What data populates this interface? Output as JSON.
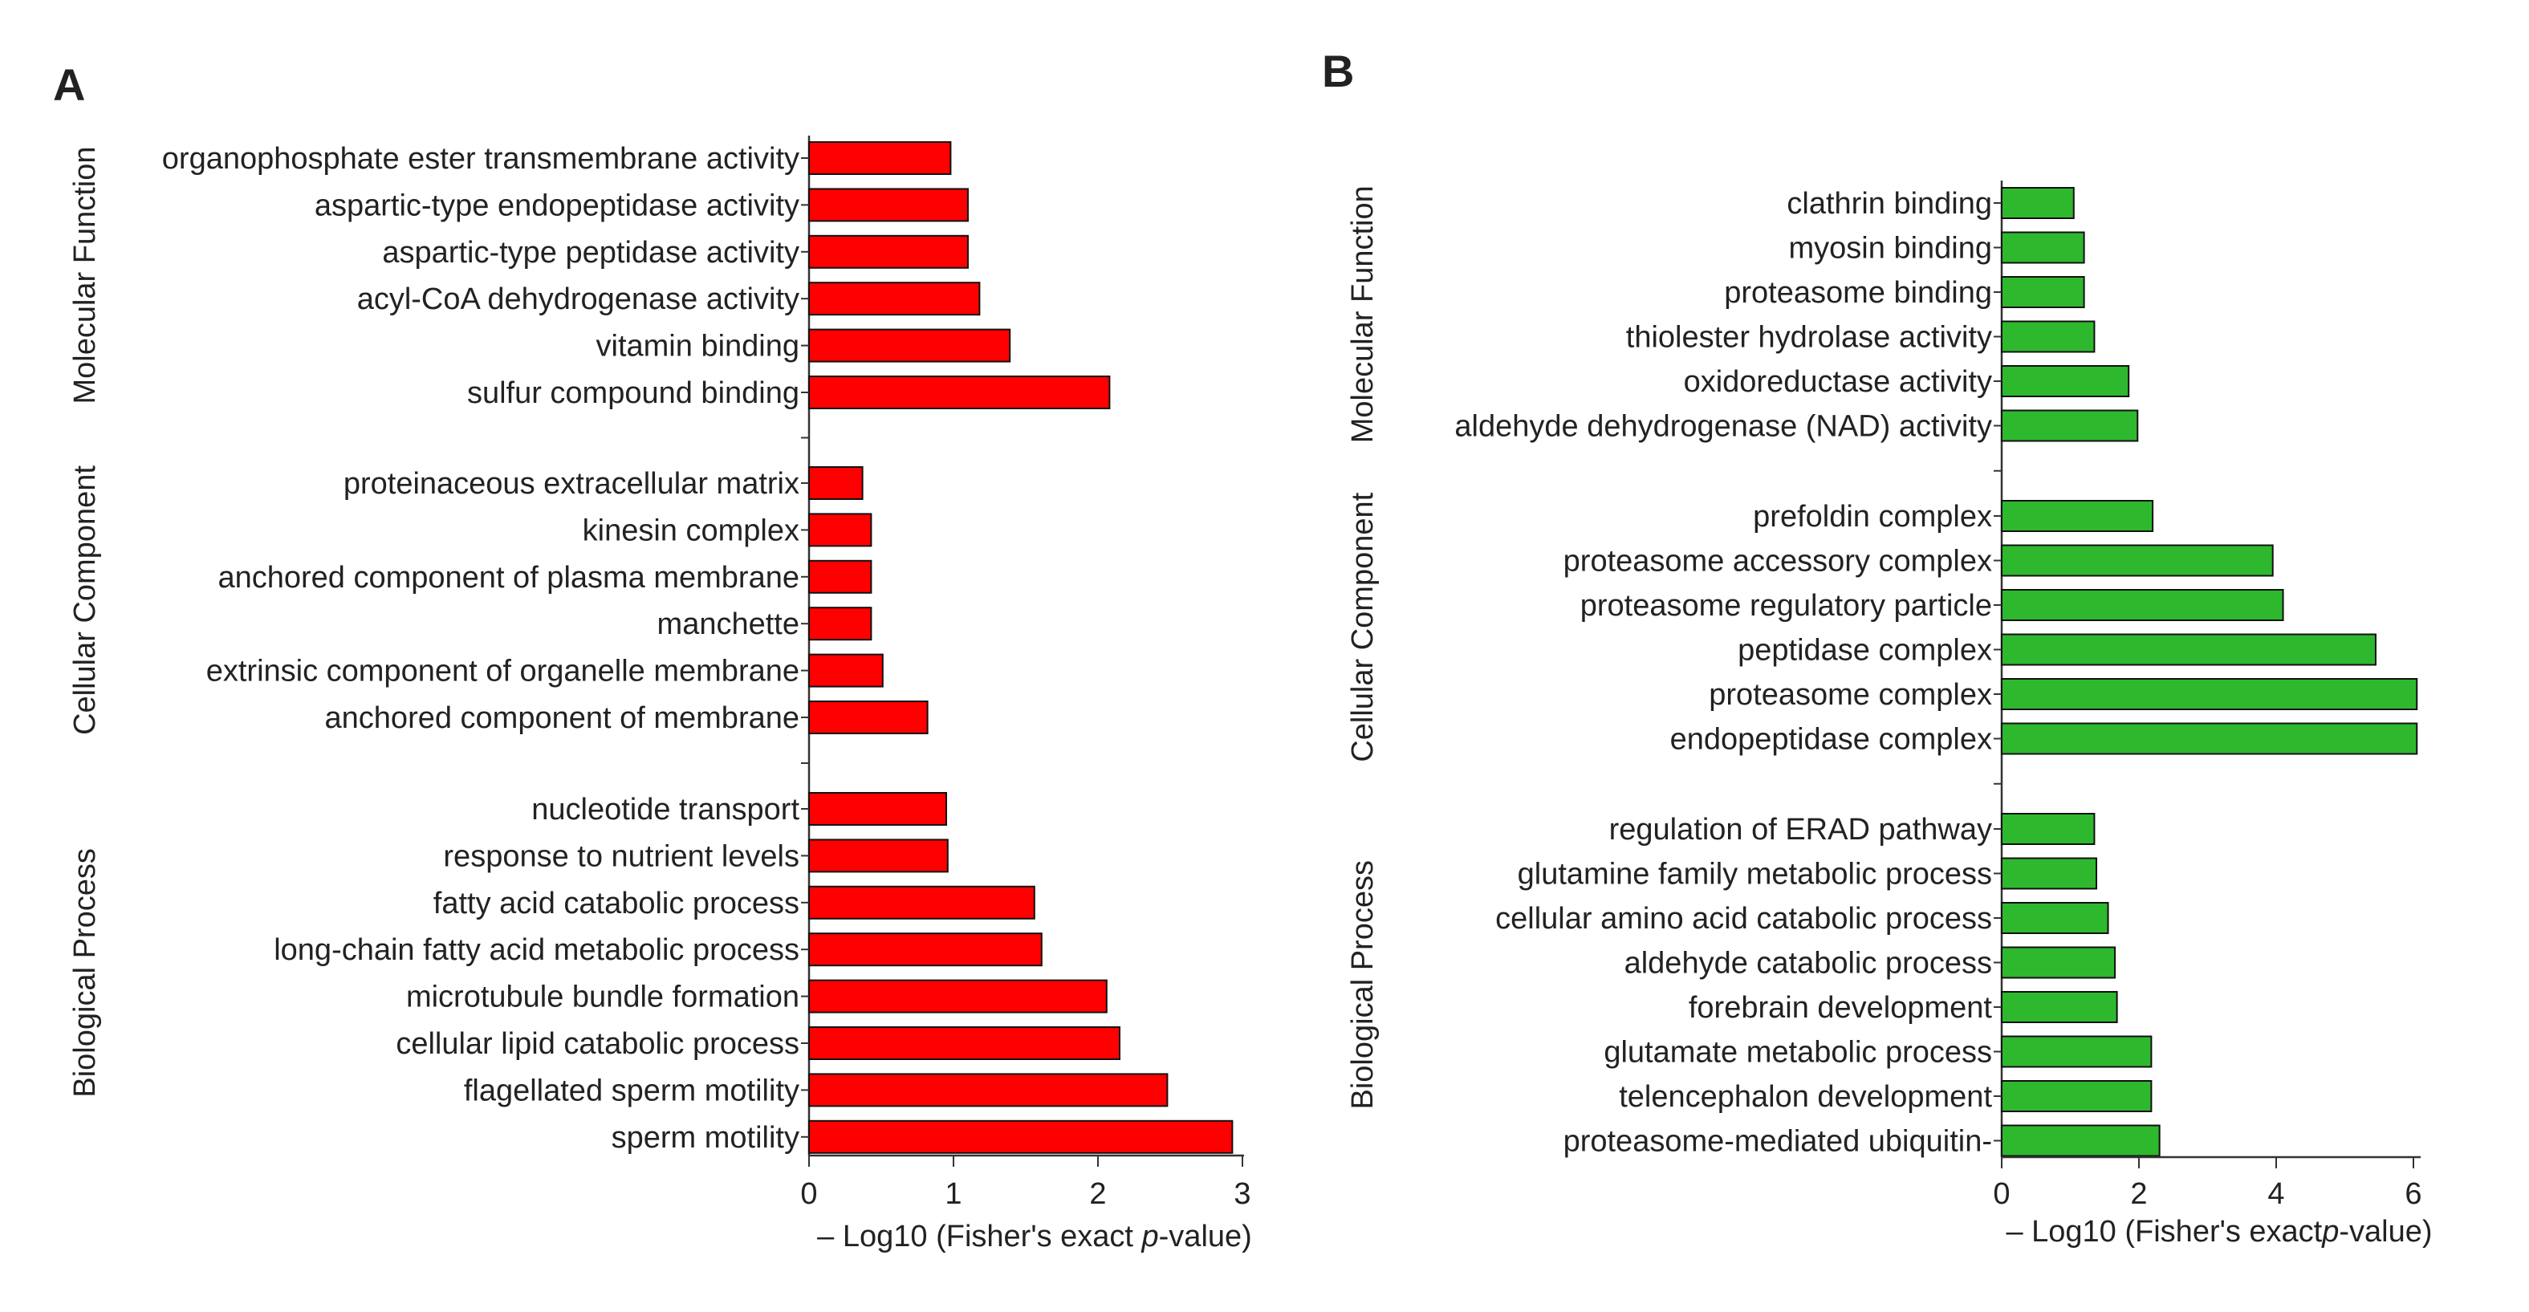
{
  "chart_data": [
    {
      "type": "bar",
      "orientation": "horizontal",
      "panel_label": "A",
      "bar_color": "#ff0000",
      "xlabel_prefix": "– Log10 (Fisher's exact ",
      "xlabel_italic": "p",
      "xlabel_suffix": "-value)",
      "xlim": [
        0,
        3
      ],
      "xticks": [
        "0",
        "1",
        "2",
        "3"
      ],
      "groups": [
        {
          "name": "Molecular Function",
          "categories": [
            "organophosphate ester transmembrane activity",
            "aspartic-type endopeptidase activity",
            "aspartic-type peptidase activity",
            "acyl-CoA dehydrogenase activity",
            "vitamin binding",
            "sulfur compound binding"
          ],
          "values": [
            0.98,
            1.1,
            1.1,
            1.18,
            1.39,
            2.08
          ]
        },
        {
          "name": "Cellular Component",
          "categories": [
            "proteinaceous extracellular matrix",
            "kinesin complex",
            "anchored component of plasma membrane",
            "manchette",
            "extrinsic component of organelle membrane",
            "anchored component of membrane"
          ],
          "values": [
            0.37,
            0.43,
            0.43,
            0.43,
            0.51,
            0.82
          ]
        },
        {
          "name": "Biological Process",
          "categories": [
            "nucleotide transport",
            "response to nutrient levels",
            "fatty acid catabolic process",
            "long-chain fatty acid metabolic process",
            "microtubule bundle formation",
            "cellular lipid catabolic process",
            "flagellated sperm motility",
            "sperm motility"
          ],
          "values": [
            0.95,
            0.96,
            1.56,
            1.61,
            2.06,
            2.15,
            2.48,
            2.93
          ]
        }
      ]
    },
    {
      "type": "bar",
      "orientation": "horizontal",
      "panel_label": "B",
      "bar_color": "#2eb82e",
      "xlabel_prefix": "– Log10 (Fisher's exact",
      "xlabel_italic": "p",
      "xlabel_suffix": "-value)",
      "xlim": [
        0,
        6
      ],
      "xticks": [
        "0",
        "2",
        "4",
        "6"
      ],
      "groups": [
        {
          "name": "Molecular Function",
          "categories": [
            "clathrin binding",
            "myosin binding",
            "proteasome binding",
            "thiolester hydrolase activity",
            "oxidoreductase activity",
            "aldehyde dehydrogenase (NAD) activity"
          ],
          "values": [
            1.05,
            1.2,
            1.2,
            1.35,
            1.85,
            1.98
          ]
        },
        {
          "name": "Cellular Component",
          "categories": [
            "prefoldin complex",
            "proteasome accessory complex",
            "proteasome regulatory particle",
            "peptidase complex",
            "proteasome complex",
            "endopeptidase complex"
          ],
          "values": [
            2.2,
            3.95,
            4.1,
            5.45,
            6.05,
            6.05
          ]
        },
        {
          "name": "Biological Process",
          "categories": [
            "regulation of ERAD pathway",
            "glutamine family metabolic process",
            "cellular amino acid catabolic process",
            "aldehyde catabolic process",
            "forebrain development",
            "glutamate metabolic process",
            "telencephalon development",
            "proteasome-mediated ubiquitin-"
          ],
          "values": [
            1.35,
            1.38,
            1.55,
            1.65,
            1.68,
            2.18,
            2.18,
            2.3
          ]
        }
      ]
    }
  ]
}
